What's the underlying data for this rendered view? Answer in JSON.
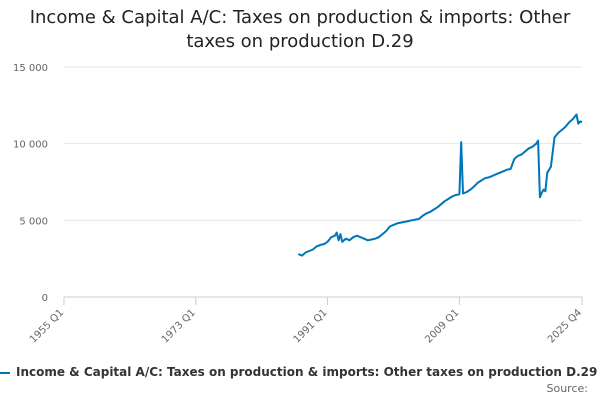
{
  "chart_data": {
    "type": "line",
    "title_line1": "Income & Capital A/C: Taxes on production & imports: Other",
    "title_line2": "taxes on production D.29",
    "ylim": [
      0,
      15000
    ],
    "y_ticks": [
      0,
      5000,
      10000,
      15000
    ],
    "y_tick_labels": [
      "0",
      "5 000",
      "10 000",
      "15 000"
    ],
    "x_range": [
      1955,
      2025.75
    ],
    "x_ticks": [
      1955,
      1973,
      1991,
      2009,
      2025.75
    ],
    "x_tick_labels": [
      "1955 Q1",
      "1973 Q1",
      "1991 Q1",
      "2009 Q1",
      "2025 Q4"
    ],
    "grid": true,
    "legend_position": "bottom",
    "source_label": "Source:",
    "series": [
      {
        "name": "Income & Capital A/C: Taxes on production & imports: Other taxes on production D.29",
        "color": "#0075b7",
        "points": [
          [
            1987.0,
            2800
          ],
          [
            1987.5,
            2700
          ],
          [
            1988.0,
            2900
          ],
          [
            1988.5,
            3000
          ],
          [
            1989.0,
            3100
          ],
          [
            1989.5,
            3300
          ],
          [
            1990.0,
            3400
          ],
          [
            1990.5,
            3450
          ],
          [
            1991.0,
            3600
          ],
          [
            1991.5,
            3900
          ],
          [
            1992.0,
            4000
          ],
          [
            1992.25,
            4200
          ],
          [
            1992.5,
            3700
          ],
          [
            1992.75,
            4100
          ],
          [
            1993.0,
            3600
          ],
          [
            1993.5,
            3800
          ],
          [
            1994.0,
            3700
          ],
          [
            1994.5,
            3900
          ],
          [
            1995.0,
            4000
          ],
          [
            1995.5,
            3900
          ],
          [
            1996.0,
            3800
          ],
          [
            1996.5,
            3700
          ],
          [
            1997.0,
            3750
          ],
          [
            1997.5,
            3800
          ],
          [
            1998.0,
            3900
          ],
          [
            1998.5,
            4100
          ],
          [
            1999.0,
            4300
          ],
          [
            1999.5,
            4600
          ],
          [
            2000.0,
            4700
          ],
          [
            2000.5,
            4800
          ],
          [
            2001.0,
            4850
          ],
          [
            2001.5,
            4900
          ],
          [
            2002.0,
            4950
          ],
          [
            2002.5,
            5000
          ],
          [
            2003.0,
            5050
          ],
          [
            2003.5,
            5100
          ],
          [
            2004.0,
            5300
          ],
          [
            2004.5,
            5450
          ],
          [
            2005.0,
            5550
          ],
          [
            2005.5,
            5700
          ],
          [
            2006.0,
            5850
          ],
          [
            2006.5,
            6050
          ],
          [
            2007.0,
            6250
          ],
          [
            2007.5,
            6400
          ],
          [
            2008.0,
            6550
          ],
          [
            2008.5,
            6650
          ],
          [
            2009.0,
            6700
          ],
          [
            2009.25,
            10100
          ],
          [
            2009.5,
            6750
          ],
          [
            2010.0,
            6850
          ],
          [
            2010.5,
            7000
          ],
          [
            2011.0,
            7200
          ],
          [
            2011.5,
            7450
          ],
          [
            2012.0,
            7600
          ],
          [
            2012.5,
            7750
          ],
          [
            2013.0,
            7800
          ],
          [
            2013.5,
            7900
          ],
          [
            2014.0,
            8000
          ],
          [
            2014.5,
            8100
          ],
          [
            2015.0,
            8200
          ],
          [
            2015.5,
            8300
          ],
          [
            2016.0,
            8350
          ],
          [
            2016.5,
            9000
          ],
          [
            2017.0,
            9200
          ],
          [
            2017.5,
            9300
          ],
          [
            2018.0,
            9500
          ],
          [
            2018.5,
            9700
          ],
          [
            2019.0,
            9800
          ],
          [
            2019.5,
            10000
          ],
          [
            2019.75,
            10200
          ],
          [
            2020.0,
            6500
          ],
          [
            2020.25,
            6800
          ],
          [
            2020.5,
            7000
          ],
          [
            2020.75,
            6900
          ],
          [
            2021.0,
            8100
          ],
          [
            2021.5,
            8500
          ],
          [
            2022.0,
            10400
          ],
          [
            2022.5,
            10700
          ],
          [
            2023.0,
            10900
          ],
          [
            2023.5,
            11100
          ],
          [
            2024.0,
            11400
          ],
          [
            2024.5,
            11600
          ],
          [
            2025.0,
            11900
          ],
          [
            2025.25,
            11300
          ],
          [
            2025.5,
            11450
          ],
          [
            2025.75,
            11400
          ]
        ]
      }
    ]
  }
}
